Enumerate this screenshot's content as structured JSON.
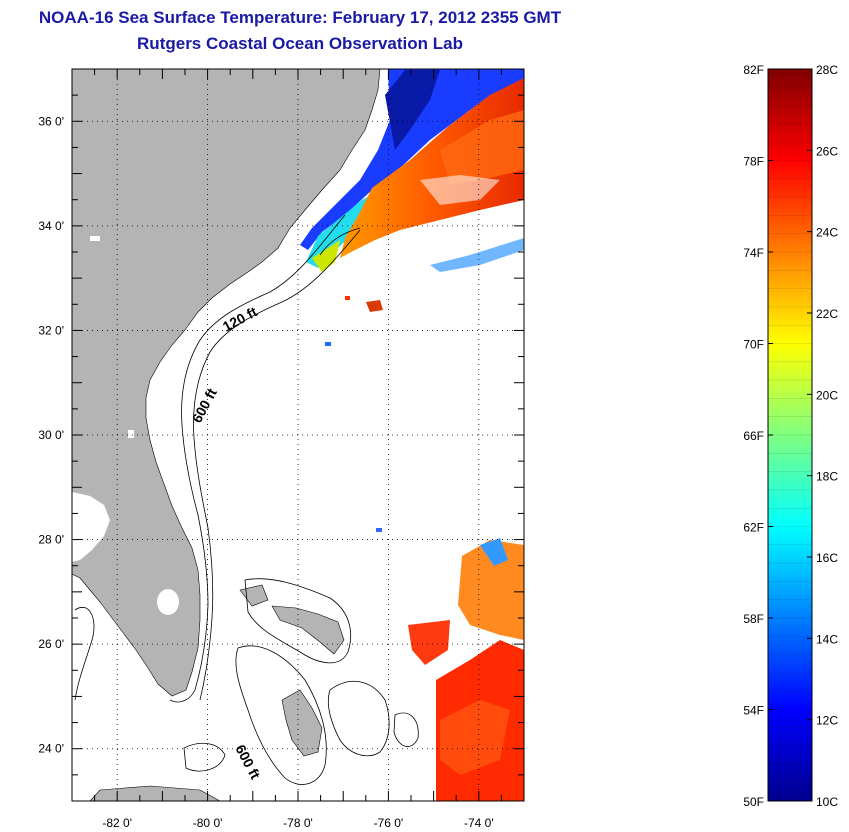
{
  "title": {
    "line1": "NOAA-16 Sea Surface Temperature:  February 17, 2012 2355 GMT",
    "line2": "Rutgers Coastal Ocean Observation Lab"
  },
  "map": {
    "lon_range": [
      -83,
      -73
    ],
    "lat_range": [
      23,
      37
    ],
    "lon_ticks": [
      {
        "value": -82,
        "label": "-82 0'"
      },
      {
        "value": -80,
        "label": "-80 0'"
      },
      {
        "value": -78,
        "label": "-78 0'"
      },
      {
        "value": -76,
        "label": "-76 0'"
      },
      {
        "value": -74,
        "label": "-74 0'"
      }
    ],
    "lat_ticks": [
      {
        "value": 36,
        "label": "36 0'"
      },
      {
        "value": 34,
        "label": "34 0'"
      },
      {
        "value": 32,
        "label": "32 0'"
      },
      {
        "value": 30,
        "label": "30 0'"
      },
      {
        "value": 28,
        "label": "28 0'"
      },
      {
        "value": 26,
        "label": "26 0'"
      },
      {
        "value": 24,
        "label": "24 0'"
      }
    ],
    "contour_labels": {
      "c120": "120 ft",
      "c600a": "600 ft",
      "c600b": "600 ft"
    },
    "land_color": "#b4b4b4"
  },
  "colorbar": {
    "range_c": [
      10,
      28
    ],
    "range_f": [
      50,
      82
    ],
    "f_labels": [
      "82F",
      "78F",
      "74F",
      "70F",
      "66F",
      "62F",
      "58F",
      "54F",
      "50F"
    ],
    "c_labels": [
      "28C",
      "26C",
      "24C",
      "22C",
      "20C",
      "18C",
      "16C",
      "14C",
      "12C",
      "10C"
    ]
  }
}
